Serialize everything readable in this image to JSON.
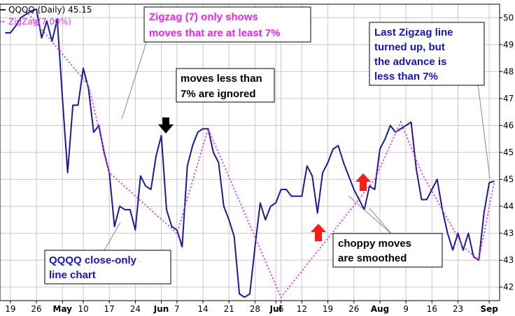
{
  "chart_data": {
    "type": "line",
    "legend": {
      "price_label": "QQQQ (Daily) 45.15",
      "zigzag_label": "ZigZag(7.00%)",
      "price_color": "#1a1a9a",
      "zigzag_color": "#ee33ee"
    },
    "ylim": [
      41.6,
      50.4
    ],
    "y_ticks": [
      {
        "value": 42,
        "label": "42"
      },
      {
        "value": 42.8,
        "label": "43"
      },
      {
        "value": 43.6,
        "label": "43"
      },
      {
        "value": 44.4,
        "label": "44"
      },
      {
        "value": 45.2,
        "label": "45"
      },
      {
        "value": 46,
        "label": "45"
      },
      {
        "value": 46.8,
        "label": "46"
      },
      {
        "value": 47.6,
        "label": "47"
      },
      {
        "value": 48.4,
        "label": "48"
      },
      {
        "value": 49.2,
        "label": "49"
      },
      {
        "value": 50,
        "label": "50"
      }
    ],
    "x_ticks": [
      {
        "x": 1,
        "label": "19",
        "bold": false
      },
      {
        "x": 6,
        "label": "26",
        "bold": false
      },
      {
        "x": 11,
        "label": "May",
        "bold": true
      },
      {
        "x": 15,
        "label": "10",
        "bold": false
      },
      {
        "x": 20,
        "label": "17",
        "bold": false
      },
      {
        "x": 25,
        "label": "24",
        "bold": false
      },
      {
        "x": 30,
        "label": "Jun",
        "bold": true
      },
      {
        "x": 33,
        "label": "7",
        "bold": false
      },
      {
        "x": 38,
        "label": "14",
        "bold": false
      },
      {
        "x": 43,
        "label": "21",
        "bold": false
      },
      {
        "x": 48,
        "label": "28",
        "bold": false
      },
      {
        "x": 52,
        "label": "Jul",
        "bold": true
      },
      {
        "x": 53,
        "label": "6",
        "bold": false
      },
      {
        "x": 57,
        "label": "12",
        "bold": false
      },
      {
        "x": 62,
        "label": "19",
        "bold": false
      },
      {
        "x": 67,
        "label": "26",
        "bold": false
      },
      {
        "x": 72,
        "label": "Aug",
        "bold": true
      },
      {
        "x": 77,
        "label": "9",
        "bold": false
      },
      {
        "x": 82,
        "label": "16",
        "bold": false
      },
      {
        "x": 87,
        "label": "23",
        "bold": false
      },
      {
        "x": 93,
        "label": "Sep",
        "bold": true
      }
    ],
    "series": [
      {
        "name": "QQQQ",
        "x": [
          0,
          1,
          2,
          3,
          4,
          5,
          6,
          7,
          8,
          9,
          10,
          11,
          12,
          13,
          14,
          15,
          16,
          17,
          18,
          19,
          20,
          21,
          22,
          23,
          24,
          25,
          26,
          27,
          28,
          29,
          30,
          31,
          32,
          33,
          34,
          35,
          36,
          37,
          38,
          39,
          40,
          41,
          42,
          43,
          44,
          45,
          46,
          47,
          48,
          49,
          50,
          51,
          52,
          53,
          54,
          55,
          56,
          57,
          58,
          59,
          60,
          61,
          62,
          63,
          64,
          65,
          66,
          67,
          68,
          69,
          70,
          71,
          72,
          73,
          74,
          75,
          76,
          77,
          78,
          79,
          80,
          81,
          82,
          83,
          84,
          85,
          86,
          87,
          88,
          89,
          90,
          91,
          92,
          93,
          94
        ],
        "values": [
          49.55,
          49.55,
          49.75,
          50.0,
          50.1,
          50.2,
          50.25,
          49.4,
          49.9,
          49.3,
          49.95,
          47.6,
          45.4,
          47.4,
          47.4,
          48.5,
          47.9,
          46.6,
          46.8,
          46.0,
          45.4,
          43.8,
          44.4,
          44.3,
          44.3,
          43.7,
          45.3,
          45.0,
          44.9,
          45.9,
          46.5,
          44.3,
          43.8,
          43.7,
          43.2,
          45.6,
          46.2,
          46.6,
          46.7,
          46.7,
          46.0,
          45.7,
          44.4,
          44.0,
          43.5,
          41.8,
          41.7,
          41.8,
          43.2,
          44.5,
          44.0,
          44.4,
          44.5,
          44.9,
          44.9,
          44.7,
          44.7,
          44.7,
          45.6,
          45.3,
          44.2,
          45.4,
          45.7,
          46.1,
          46.2,
          45.7,
          45.3,
          44.9,
          44.6,
          44.3,
          45.0,
          44.9,
          46.1,
          46.4,
          46.8,
          46.6,
          46.7,
          46.8,
          46.9,
          45.5,
          44.6,
          44.6,
          44.9,
          45.2,
          44.3,
          43.6,
          43.1,
          43.6,
          43.1,
          43.6,
          42.9,
          42.8,
          44.2,
          45.1,
          45.15
        ],
        "x_full": true
      },
      {
        "name": "ZigZag(7.00%)",
        "x": [
          4,
          16,
          20,
          33,
          39,
          53,
          71,
          76,
          80,
          88,
          91,
          94
        ],
        "values": [
          50.2,
          48.0,
          45.4,
          43.6,
          46.7,
          41.7,
          45.2,
          46.9,
          45.4,
          43.2,
          42.8,
          45.15
        ]
      }
    ],
    "xlim": [
      -1,
      95
    ],
    "grid": true,
    "callouts": [
      {
        "id": "zigzag-only-7",
        "lines": [
          "Zigzag (7) only shows",
          "moves that are at least 7%"
        ],
        "color": "#ee22ee"
      },
      {
        "id": "moves-less-7",
        "lines": [
          "moves less than",
          "7% are ignored"
        ],
        "color": "#000000"
      },
      {
        "id": "last-zigzag",
        "lines": [
          "Last Zigzag line",
          "turned up, but",
          "the advance is",
          "less than 7%"
        ],
        "color": "#1515c8"
      },
      {
        "id": "close-only",
        "lines": [
          "QQQQ close-only",
          "line chart"
        ],
        "color": "#1515c8"
      },
      {
        "id": "choppy",
        "lines": [
          "choppy moves",
          "are smoothed"
        ],
        "color": "#000000"
      }
    ]
  }
}
